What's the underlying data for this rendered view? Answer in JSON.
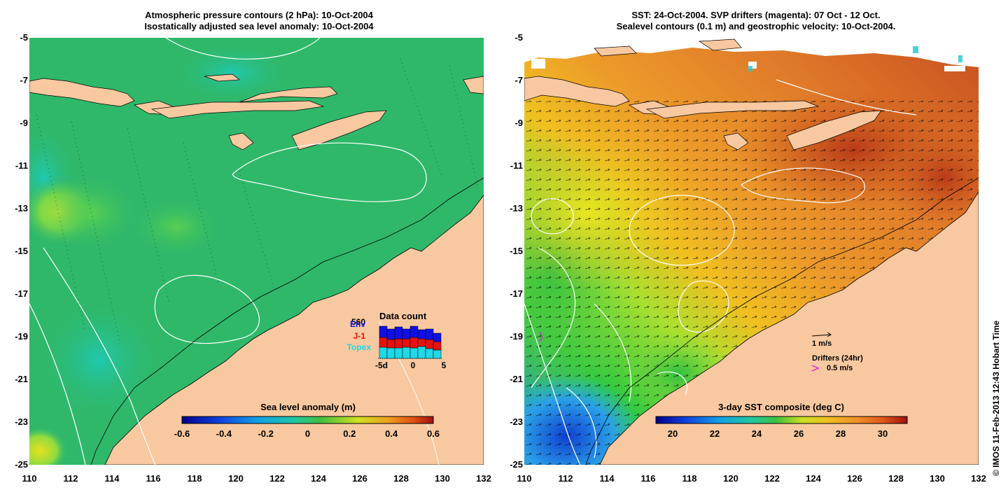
{
  "left": {
    "title_line1": "Atmospheric pressure contours (2 hPa): 10-Oct-2004",
    "title_line2": "Isostatically adjusted sea level anomaly: 10-Oct-2004",
    "colorbar": {
      "title": "Sea level anomaly (m)",
      "ticks": [
        "-0.6",
        "-0.4",
        "-0.2",
        "0",
        "0.2",
        "0.4",
        "0.6"
      ]
    },
    "data_count": {
      "title": "Data count",
      "max_value": "560",
      "series": [
        "Env",
        "J-1",
        "Topex"
      ],
      "series_colors": [
        "#1010e6",
        "#e61010",
        "#20d8e8"
      ],
      "x_ticks": [
        "-5d",
        "0",
        "5"
      ]
    }
  },
  "right": {
    "title_line1": "SST: 24-Oct-2004. SVP drifters (magenta): 07 Oct - 12 Oct.",
    "title_line2": "Sealevel contours (0.1 m) and geostrophic velocity: 10-Oct-2004.",
    "colorbar": {
      "title": "3-day SST composite (deg C)",
      "ticks": [
        "20",
        "22",
        "24",
        "26",
        "28",
        "30"
      ]
    },
    "velocity_scale": "1 m/s",
    "drifters_label": "Drifters (24hr)",
    "drifters_scale": "0.5 m/s"
  },
  "axes": {
    "y_ticks": [
      "-5",
      "-7",
      "-9",
      "-11",
      "-13",
      "-15",
      "-17",
      "-19",
      "-21",
      "-23",
      "-25"
    ],
    "x_ticks": [
      "110",
      "112",
      "114",
      "116",
      "118",
      "120",
      "122",
      "124",
      "126",
      "128",
      "130",
      "132"
    ]
  },
  "copyright": "© IMOS 11-Feb-2013 12:43 Hobart Time",
  "colors": {
    "land": "#f8c8a0",
    "slaocean": "#2fb86a",
    "sst_warm": "#e07a2a"
  }
}
